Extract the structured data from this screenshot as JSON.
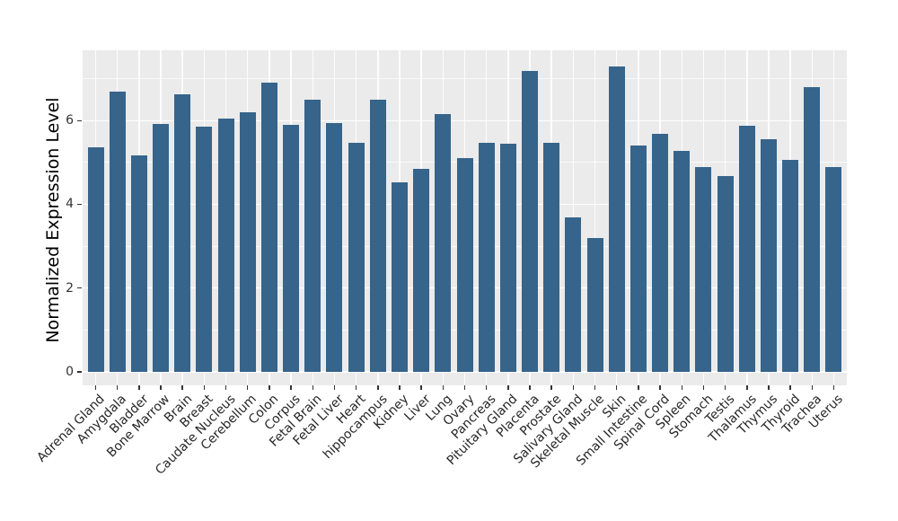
{
  "figure": {
    "background": "#FFFFFF",
    "panel_background": "#EBEBEB",
    "grid_color": "#FFFFFF",
    "bar_color": "#36648B",
    "tick_color": "#333333",
    "axis_text_color": "#333333"
  },
  "chart_data": {
    "type": "bar",
    "title": "",
    "xlabel": "",
    "ylabel": "Normalized Expression Level",
    "categories": [
      "Adrenal Gland",
      "Amygdala",
      "Bladder",
      "Bone Marrow",
      "Brain",
      "Breast",
      "Caudate Nucleus",
      "Cerebellum",
      "Colon",
      "Corpus",
      "Fetal Brain",
      "Fetal Liver",
      "Heart",
      "hippocampus",
      "Kidney",
      "Liver",
      "Lung",
      "Ovary",
      "Pancreas",
      "Pituitary Gland",
      "Placenta",
      "Prostate",
      "Salivary Gland",
      "Skeletal Muscle",
      "Skin",
      "Small Intestine",
      "Spinal Cord",
      "Spleen",
      "Stomach",
      "Testis",
      "Thalamus",
      "Thymus",
      "Thyroid",
      "Trachea",
      "Uterus"
    ],
    "values": [
      5.37,
      6.69,
      5.18,
      5.93,
      6.63,
      5.86,
      6.06,
      6.19,
      6.9,
      5.89,
      6.51,
      5.94,
      5.46,
      6.5,
      4.53,
      4.85,
      6.16,
      5.11,
      5.46,
      5.44,
      7.19,
      5.46,
      3.69,
      3.19,
      7.3,
      5.41,
      5.69,
      5.28,
      4.9,
      4.68,
      5.88,
      5.55,
      5.06,
      6.81,
      4.88
    ],
    "y_ticks": [
      0,
      2,
      4,
      6
    ],
    "y_minor_ticks": [
      1,
      3,
      5,
      7
    ],
    "ylim": [
      -0.33,
      7.68
    ],
    "grid": true,
    "legend": false,
    "bar_orientation": "vertical",
    "x_label_rotation_deg": 45
  }
}
